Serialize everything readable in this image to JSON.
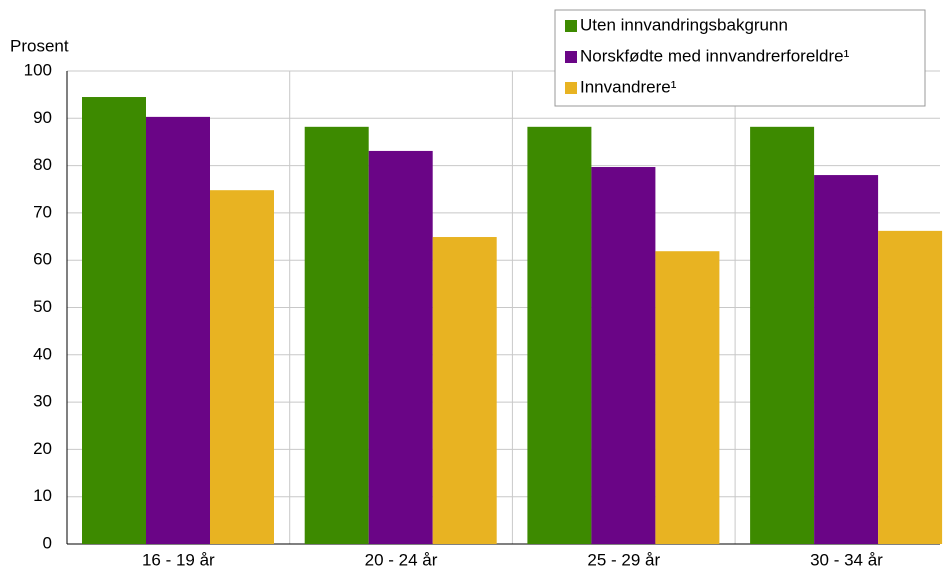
{
  "chart_data": {
    "type": "bar",
    "y_label": "Prosent",
    "categories": [
      "16 - 19 år",
      "20 - 24 år",
      "25 - 29 år",
      "30 - 34 år"
    ],
    "series": [
      {
        "name": "Uten innvandringsbakgrunn",
        "color": "#3d8a00",
        "values": [
          94.5,
          88.2,
          88.2,
          88.2
        ]
      },
      {
        "name": "Norskfødte med innvandrerforeldre¹",
        "color": "#6a0586",
        "values": [
          90.3,
          83.1,
          79.7,
          78
        ]
      },
      {
        "name": "Innvandrere¹",
        "color": "#e8b322",
        "values": [
          74.8,
          64.9,
          61.9,
          66.2
        ]
      }
    ],
    "ylim": [
      0,
      100
    ],
    "yticks": [
      0,
      10,
      20,
      30,
      40,
      50,
      60,
      70,
      80,
      90,
      100
    ],
    "grid": true
  }
}
